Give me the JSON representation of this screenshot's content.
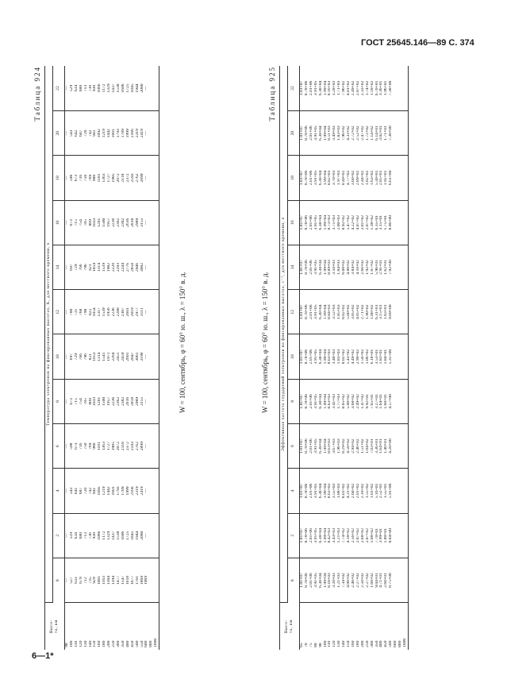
{
  "header": {
    "standard": "ГОСТ 25645.146—89 С. 374"
  },
  "footer": {
    "mark": "6—1*"
  },
  "table1": {
    "label": "Таблица 924",
    "condition": "W = 100, сентябрь, φ = 60° ю. ш., λ = 150° в. д.",
    "span_title": "Температура электронов на фиксированных высотах, К, для местного времени, ч",
    "alt_header": "Высо-\nта, км",
    "columns": [
      "0",
      "2",
      "4",
      "6",
      "8",
      "10",
      "12",
      "14",
      "16",
      "18",
      "20",
      "22"
    ],
    "altitudes": [
      "90",
      "100",
      "110",
      "120",
      "130",
      "140",
      "150",
      "160",
      "180",
      "200",
      "250",
      "300",
      "350",
      "400",
      "450",
      "500",
      "550",
      "600",
      "800",
      "1000"
    ],
    "rows": [
      [
        "—",
        "—",
        "—",
        "—",
        "—",
        "—",
        "—",
        "—",
        "—",
        "—",
        "—",
        "—"
      ],
      [
        "527",
        "529",
        "543",
        "598",
        "673",
        "697",
        "700",
        "697",
        "673",
        "598",
        "543",
        "529"
      ],
      [
        "633",
        "634",
        "641",
        "673",
        "715",
        "729",
        "731",
        "729",
        "715",
        "673",
        "642",
        "634"
      ],
      [
        "679",
        "680",
        "687",
        "716",
        "754",
        "766",
        "768",
        "766",
        "754",
        "716",
        "687",
        "680"
      ],
      [
        "712",
        "713",
        "720",
        "750",
        "785",
        "796",
        "798",
        "796",
        "785",
        "750",
        "720",
        "713"
      ],
      [
        "735",
        "736",
        "742",
        "769",
        "809",
        "821",
        "822",
        "821",
        "809",
        "769",
        "742",
        "736"
      ],
      [
        "929",
        "930",
        "941",
        "980",
        "1033",
        "1053",
        "1054",
        "1054",
        "1033",
        "980",
        "941",
        "930"
      ],
      [
        "1061",
        "1066",
        "1092",
        "1181",
        "1281",
        "1314",
        "1317",
        "1314",
        "1281",
        "1181",
        "1092",
        "1066"
      ],
      [
        "1163",
        "1172",
        "1219",
        "1363",
        "1500",
        "1541",
        "1539",
        "1539",
        "1500",
        "1363",
        "1219",
        "1172"
      ],
      [
        "1304",
        "1329",
        "1442",
        "1727",
        "1957",
        "1971",
        "1956",
        "1982",
        "1957",
        "1727",
        "1442",
        "1329"
      ],
      [
        "1394",
        "1437",
        "1601",
        "1985",
        "2236",
        "2264",
        "2236",
        "2220",
        "2236",
        "1985",
        "1601",
        "1437"
      ],
      [
        "1477",
        "1538",
        "1793",
        "2072",
        "2362",
        "2451",
        "2288",
        "2293",
        "2362",
        "2072",
        "1793",
        "1538"
      ],
      [
        "1547",
        "1606",
        "1789",
        "2118",
        "2382",
        "2459",
        "2387",
        "2244",
        "2382",
        "2118",
        "1789",
        "1606"
      ],
      [
        "1618",
        "1725",
        "1999",
        "2372",
        "2616",
        "2601",
        "2601",
        "2776",
        "2616",
        "2372",
        "1999",
        "1725"
      ],
      [
        "1677",
        "1845",
        "2166",
        "2593",
        "2818",
        "2847",
        "2819",
        "2858",
        "2818",
        "2593",
        "2166",
        "1845"
      ],
      [
        "1761",
        "1944",
        "2319",
        "2762",
        "2989",
        "3061",
        "2977",
        "2946",
        "2989",
        "2762",
        "2319",
        "1944"
      ],
      [
        "1869",
        "2080",
        "2419",
        "2899",
        "3155",
        "3190",
        "3111",
        "3082",
        "3155",
        "2899",
        "2419",
        "2080"
      ],
      [
        "1969",
        "—",
        "—",
        "—",
        "—",
        "—",
        "—",
        "—",
        "—",
        "—",
        "—",
        "—"
      ],
      [
        "",
        "",
        "",
        "",
        "",
        "",
        "",
        "",
        "",
        "",
        "",
        ""
      ],
      [
        "",
        "",
        "",
        "",
        "",
        "",
        "",
        "",
        "",
        "",
        "",
        ""
      ]
    ]
  },
  "table2": {
    "label": "Таблица 925",
    "condition": "W = 100, сентябрь, φ = 60° ю. ш., λ = 150° в. д.",
    "span_title": "Эффективная частота соударений электронов на фиксированных высотах, с⁻¹, для местного времени, ч",
    "alt_header": "Высо-\nта, км",
    "columns": [
      "0",
      "2",
      "4",
      "6",
      "8",
      "10",
      "12",
      "14",
      "16",
      "18",
      "20",
      "22"
    ],
    "altitudes": [
      "65",
      "70",
      "75",
      "80",
      "90",
      "100",
      "110",
      "120",
      "130",
      "140",
      "150",
      "160",
      "180",
      "200",
      "250",
      "300",
      "350",
      "400",
      "450",
      "500",
      "600",
      "800",
      "1000"
    ],
    "rows": [
      [
        "1.81+07",
        "1.81+07",
        "1.81+07",
        "1.81+07",
        "1.81+07",
        "1.81+07",
        "1.81+07",
        "1.81+07",
        "1.81+07",
        "1.81+07",
        "1.81+07",
        "1.81+07"
      ],
      [
        "8.78+06",
        "8.78+06",
        "8.78+06",
        "8.78+06",
        "8.78+06",
        "8.78+06",
        "8.78+06",
        "8.78+06",
        "8.78+06",
        "8.78+06",
        "8.78+06",
        "8.78+06"
      ],
      [
        "2.01+06",
        "2.01+06",
        "2.01+06",
        "2.01+06",
        "2.01+06",
        "2.01+06",
        "2.01+06",
        "2.01+06",
        "2.01+06",
        "2.01+06",
        "2.01+06",
        "2.01+06"
      ],
      [
        "3.91+05",
        "3.91+05",
        "3.91+05",
        "3.91+05",
        "3.91+05",
        "3.91+05",
        "3.91+05",
        "3.91+05",
        "3.91+05",
        "3.91+05",
        "3.91+05",
        "3.91+05"
      ],
      [
        "6.38+04",
        "6.38+04",
        "6.38+04",
        "6.38+04",
        "6.38+04",
        "6.38+04",
        "6.38+04",
        "6.38+04",
        "6.38+04",
        "6.38+04",
        "6.38+04",
        "6.38+04"
      ],
      [
        "1.99+04",
        "1.99+04",
        "1.99+04",
        "1.99+04",
        "1.99+04",
        "1.99+04",
        "1.99+04",
        "1.99+04",
        "1.99+04",
        "1.99+04",
        "1.99+04",
        "1.99+04"
      ],
      [
        "8.18+03",
        "8.42+03",
        "8.63+03",
        "8.63+03",
        "8.63+03",
        "8.63+03",
        "8.84+03",
        "8.89+03",
        "8.73+03",
        "8.82+03",
        "8.51+03",
        "8.16+03"
      ],
      [
        "3.28+03",
        "3.43+03",
        "3.55+03",
        "3.67+03",
        "3.41+03",
        "3.48+03",
        "3.52+03",
        "3.50+03",
        "3.75+03",
        "3.70+03",
        "3.49+03",
        "3.28+03"
      ],
      [
        "1.21+03",
        "1.21+03",
        "1.88+03",
        "1.96+03",
        "1.77+03",
        "1.83+03",
        "1.85+03",
        "1.84+03",
        "2.00+03",
        "1.97+03",
        "1.83+03",
        "1.71+03"
      ],
      [
        "7.34+02",
        "7.74+02",
        "8.01+02",
        "8.29+02",
        "8.05+02",
        "8.02+02",
        "8.02+02",
        "8.08+02",
        "8.92+02",
        "8.49+02",
        "7.96+02",
        "7.96+02"
      ],
      [
        "4.00+02",
        "4.18+02",
        "4.31+02",
        "4.58+02",
        "5.00+02",
        "5.43+02",
        "5.00+02",
        "4.88+02",
        "5.47+02",
        "4.77+02",
        "4.33+02",
        "4.01+02"
      ],
      [
        "2.48+02",
        "2.56+02",
        "2.60+02",
        "2.94+02",
        "3.68+02",
        "4.49+02",
        "3.85+02",
        "3.84+02",
        "4.22+02",
        "3.60+02",
        "2.72+02",
        "2.49+02"
      ],
      [
        "2.27+02",
        "2.07+02",
        "2.01+02",
        "2.46+02",
        "2.49+02",
        "2.99+02",
        "4.05+02",
        "4.10+02",
        "4.07+02",
        "2.89+02",
        "2.52+02",
        "2.07+02"
      ],
      [
        "2.50+02",
        "2.68+02",
        "2.10+02",
        "1.51+02",
        "1.47+02",
        "1.56+02",
        "2.71+02",
        "2.66+02",
        "3.01+02",
        "2.44+02",
        "2.47+02",
        "2.33+02"
      ],
      [
        "2.27+02",
        "2.07+02",
        "1.55+02",
        "1.04+02",
        "9.92+01",
        "1.06+02",
        "1.90+02",
        "1.92+02",
        "2.07+02",
        "1.82+02",
        "1.72+02",
        "1.74+02"
      ],
      [
        "1.68+02",
        "1.08+02",
        "1.01+02",
        "7.03+01",
        "7.65+01",
        "6.18+01",
        "1.08+02",
        "1.07+02",
        "1.38+02",
        "1.63+02",
        "1.14+02",
        "1.18+02"
      ],
      [
        "9.04+01",
        "7.70+01",
        "5.16+01",
        "3.36+01",
        "3.27+01",
        "3.53+01",
        "6.31+01",
        "5.96+01",
        "6.35+01",
        "5.30+01",
        "6.14+01",
        "6.70+01"
      ],
      [
        "4.71+01",
        "3.99+01",
        "2.52+01",
        "1.64+01",
        "1.64+01",
        "1.83+01",
        "3.15+01",
        "2.91+01",
        "3.15+01",
        "2.85+01",
        "3.02+01",
        "3.36+01"
      ],
      [
        "2.68+01",
        "1.80+01",
        "1.55+01",
        "1.40+01",
        "1.60+01",
        "1.84+01",
        "1.83+01",
        "1.62+01",
        "1.75+01",
        "1.92+01",
        "1.71+01",
        "1.96+01"
      ],
      [
        "8.75+00",
        "8.04+00",
        "5.91+00",
        "4.28+00",
        "4.57+00",
        "5.35+00",
        "9.09+00",
        "7.92+00",
        "8.06+00",
        "6.61+00",
        "7.38+00",
        "7.38+00"
      ],
      [
        "",
        "",
        "",
        "",
        "",
        "",
        "",
        "",
        "",
        "",
        "",
        ""
      ],
      [
        "",
        "",
        "",
        "",
        "",
        "",
        "",
        "",
        "",
        "",
        "",
        ""
      ],
      [
        "",
        "",
        "",
        "",
        "",
        "",
        "",
        "",
        "",
        "",
        "",
        ""
      ]
    ]
  }
}
